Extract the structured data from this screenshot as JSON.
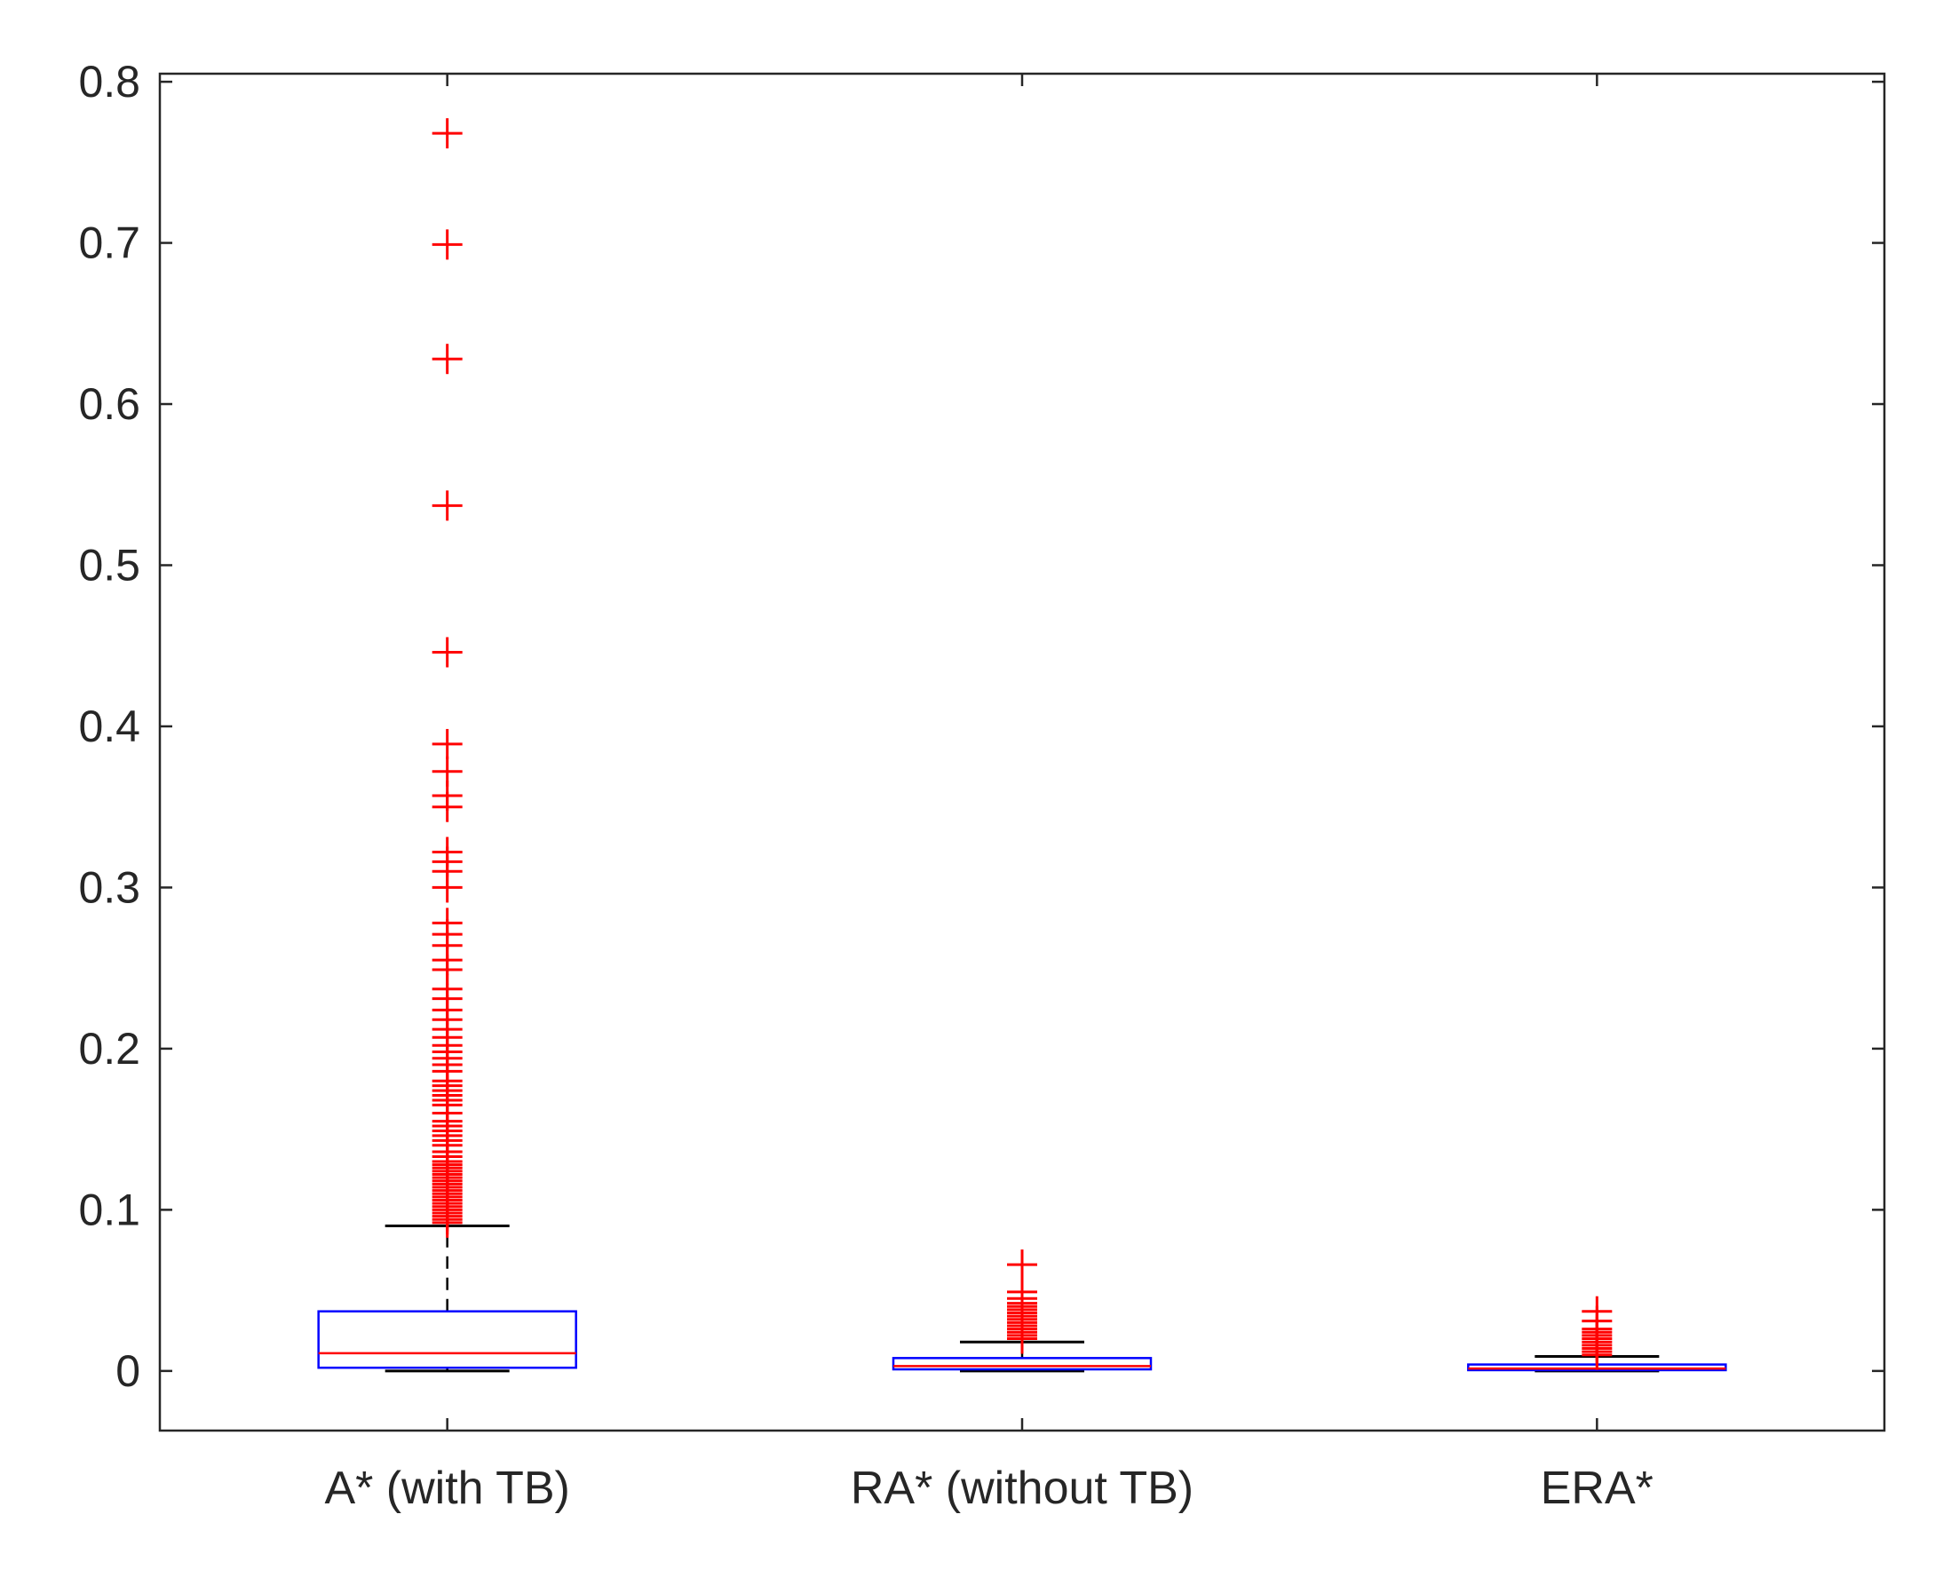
{
  "chart_data": {
    "type": "box",
    "title": "",
    "xlabel": "",
    "ylabel": "",
    "ylim": [
      -0.037,
      0.805
    ],
    "yticks": [
      0,
      0.1,
      0.2,
      0.3,
      0.4,
      0.5,
      0.6,
      0.7,
      0.8
    ],
    "ytick_labels": [
      "0",
      "0.1",
      "0.2",
      "0.3",
      "0.4",
      "0.5",
      "0.6",
      "0.7",
      "0.8"
    ],
    "grid": false,
    "colors": {
      "box": "#0000ff",
      "median": "#ff0000",
      "whisker": "#000000",
      "outlier": "#ff0000",
      "axes": "#262626"
    },
    "categories": [
      "A* (with TB)",
      "RA* (without TB)",
      "ERA*"
    ],
    "boxes": [
      {
        "label": "A* (with TB)",
        "min": 0.0,
        "q1": 0.002,
        "median": 0.011,
        "q3": 0.037,
        "max": 0.09,
        "outliers": [
          0.092,
          0.094,
          0.096,
          0.098,
          0.1,
          0.102,
          0.104,
          0.106,
          0.108,
          0.11,
          0.112,
          0.114,
          0.116,
          0.118,
          0.12,
          0.122,
          0.124,
          0.126,
          0.128,
          0.13,
          0.133,
          0.136,
          0.14,
          0.143,
          0.146,
          0.149,
          0.152,
          0.155,
          0.16,
          0.165,
          0.168,
          0.171,
          0.174,
          0.177,
          0.18,
          0.186,
          0.19,
          0.194,
          0.198,
          0.202,
          0.207,
          0.212,
          0.218,
          0.224,
          0.231,
          0.237,
          0.249,
          0.255,
          0.264,
          0.271,
          0.278,
          0.3,
          0.31,
          0.316,
          0.322,
          0.35,
          0.357,
          0.372,
          0.389,
          0.446,
          0.537,
          0.628,
          0.699,
          0.768
        ]
      },
      {
        "label": "RA* (without TB)",
        "min": 0.0,
        "q1": 0.001,
        "median": 0.003,
        "q3": 0.008,
        "max": 0.018,
        "outliers": [
          0.02,
          0.022,
          0.024,
          0.026,
          0.028,
          0.03,
          0.032,
          0.034,
          0.036,
          0.038,
          0.04,
          0.042,
          0.045,
          0.049,
          0.066
        ]
      },
      {
        "label": "ERA*",
        "min": 0.0,
        "q1": 0.0005,
        "median": 0.0015,
        "q3": 0.004,
        "max": 0.009,
        "outliers": [
          0.01,
          0.012,
          0.014,
          0.016,
          0.018,
          0.02,
          0.022,
          0.024,
          0.026,
          0.031,
          0.037
        ]
      }
    ]
  }
}
